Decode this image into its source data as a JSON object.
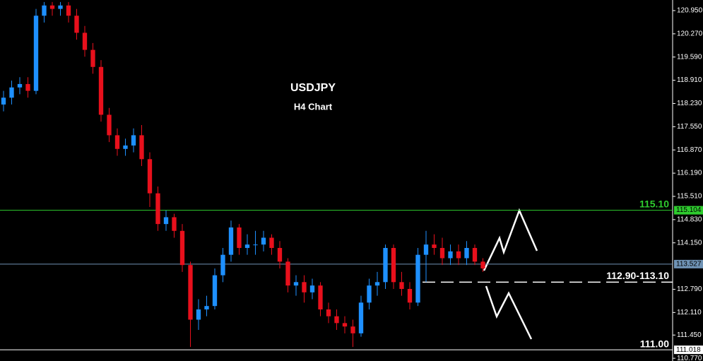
{
  "chart_data": {
    "type": "candlestick",
    "title": "USDJPY",
    "subtitle": "H4 Chart",
    "up_color": "#1e90ff",
    "down_color": "#e8101c",
    "ylim": [
      110.69,
      121.26
    ],
    "yticks": [
      {
        "value": 120.95,
        "label": "120.950"
      },
      {
        "value": 120.27,
        "label": "120.270"
      },
      {
        "value": 119.59,
        "label": "119.590"
      },
      {
        "value": 118.91,
        "label": "118.910"
      },
      {
        "value": 118.23,
        "label": "118.230"
      },
      {
        "value": 117.55,
        "label": "117.550"
      },
      {
        "value": 116.87,
        "label": "116.870"
      },
      {
        "value": 116.19,
        "label": "116.190"
      },
      {
        "value": 115.51,
        "label": "115.510"
      },
      {
        "value": 114.83,
        "label": "114.830"
      },
      {
        "value": 114.15,
        "label": "114.150"
      },
      {
        "value": 112.79,
        "label": "112.790"
      },
      {
        "value": 112.11,
        "label": "112.110"
      },
      {
        "value": 111.45,
        "label": "111.450"
      },
      {
        "value": 110.77,
        "label": "110.770"
      }
    ],
    "open": [
      118.2,
      118.4,
      118.7,
      118.8,
      118.6,
      120.8,
      121.1,
      121.0,
      121.1,
      120.8,
      120.3,
      119.8,
      119.3,
      117.9,
      117.3,
      116.9,
      117.0,
      117.3,
      116.6,
      115.6,
      114.7,
      114.9,
      114.5,
      113.5,
      111.9,
      112.2,
      112.3,
      113.2,
      113.8,
      114.6,
      114.0,
      114.1,
      114.1,
      114.3,
      114.0,
      113.6,
      112.9,
      113.0,
      112.7,
      112.9,
      112.2,
      112.0,
      111.8,
      111.7,
      111.5,
      112.4,
      112.9,
      113.0,
      114.0,
      113.0,
      112.8,
      112.4,
      113.8,
      114.1,
      114.0,
      113.7,
      113.9,
      113.7,
      114.0,
      113.6
    ],
    "high": [
      118.6,
      118.9,
      119.0,
      119.0,
      121.0,
      121.2,
      121.2,
      121.2,
      121.2,
      121.0,
      120.5,
      120.0,
      119.5,
      118.1,
      117.5,
      117.2,
      117.5,
      117.6,
      116.8,
      115.8,
      115.1,
      115.0,
      114.7,
      113.6,
      112.5,
      112.6,
      113.4,
      114.0,
      114.8,
      114.7,
      114.4,
      114.5,
      114.5,
      114.4,
      114.2,
      113.7,
      113.2,
      113.2,
      113.1,
      113.0,
      112.4,
      112.2,
      112.0,
      111.9,
      112.6,
      113.1,
      113.3,
      114.1,
      114.1,
      113.3,
      113.0,
      114.0,
      114.5,
      114.4,
      114.3,
      114.1,
      114.1,
      114.2,
      114.1,
      113.7
    ],
    "low": [
      118.0,
      118.2,
      118.5,
      118.4,
      118.5,
      120.6,
      120.8,
      120.8,
      120.6,
      120.1,
      119.6,
      119.1,
      117.7,
      117.1,
      116.7,
      116.7,
      116.8,
      116.4,
      115.2,
      114.5,
      114.5,
      114.3,
      113.3,
      111.1,
      111.6,
      112.0,
      112.2,
      113.0,
      113.6,
      113.8,
      113.8,
      113.8,
      113.9,
      113.8,
      113.4,
      112.7,
      112.6,
      112.4,
      112.5,
      112.0,
      111.8,
      111.6,
      111.5,
      111.1,
      111.4,
      112.2,
      112.6,
      112.8,
      112.8,
      112.6,
      112.2,
      112.3,
      113.0,
      113.8,
      113.5,
      113.5,
      113.5,
      113.5,
      113.5,
      113.3
    ],
    "close": [
      118.4,
      118.7,
      118.8,
      118.6,
      120.8,
      121.1,
      121.0,
      121.1,
      120.8,
      120.3,
      119.8,
      119.3,
      117.9,
      117.3,
      116.9,
      117.0,
      117.3,
      116.6,
      115.6,
      114.7,
      114.9,
      114.5,
      113.5,
      111.9,
      112.2,
      112.3,
      113.2,
      113.8,
      114.6,
      114.0,
      114.1,
      114.1,
      114.3,
      114.0,
      113.6,
      112.9,
      113.0,
      112.7,
      112.9,
      112.2,
      112.0,
      111.8,
      111.7,
      111.5,
      112.4,
      112.9,
      113.0,
      114.0,
      113.0,
      112.8,
      112.4,
      113.8,
      114.1,
      114.0,
      113.7,
      113.9,
      113.7,
      114.0,
      113.6,
      113.4
    ],
    "levels": [
      {
        "value": 115.104,
        "color": "#2ecc2e",
        "style": "solid",
        "tag": true
      },
      {
        "value": 113.527,
        "color": "#6f93b5",
        "style": "solid",
        "tag": true
      },
      {
        "value": 111.018,
        "color": "#ffffff",
        "style": "solid",
        "tag": true
      },
      {
        "value": 113.0,
        "color": "#ffffff",
        "style": "dashed",
        "tag": false
      }
    ],
    "annotations": [
      {
        "text": "115.10",
        "value": 115.1,
        "color": "#2ecc2e"
      },
      {
        "text": "112.90-113.10",
        "value": 113.0,
        "color": "#ffffff"
      },
      {
        "text": "111.00",
        "value": 111.0,
        "color": "#ffffff"
      }
    ]
  }
}
